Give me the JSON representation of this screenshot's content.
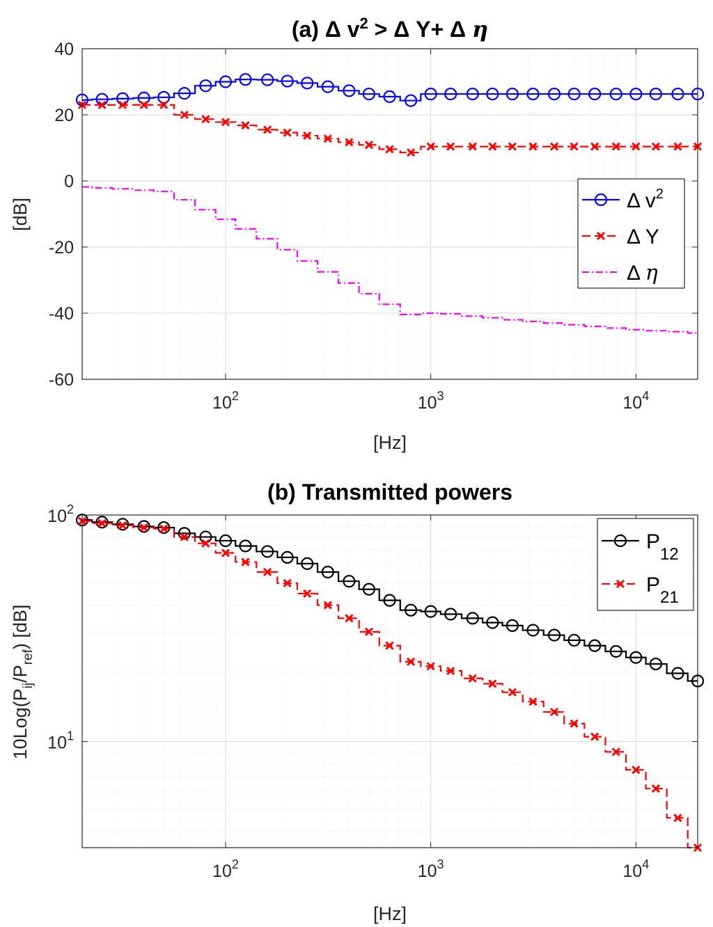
{
  "chart_data": [
    {
      "type": "line",
      "title": "(a) Δ v² > Δ Y+ Δ η",
      "title_parts": {
        "a": "(a) Δ v",
        "sup": "2",
        "b": " > Δ Y+ Δ ",
        "eta": "η"
      },
      "xlabel": "[Hz]",
      "ylabel": "[dB]",
      "xscale": "log",
      "xlim": [
        20,
        20000
      ],
      "ylim": [
        -60,
        40
      ],
      "yticks": [
        -60,
        -40,
        -20,
        0,
        20,
        40
      ],
      "ytick_labels": [
        "-60",
        "-40",
        "-20",
        "0",
        "20",
        "40"
      ],
      "xticks": [
        100,
        1000,
        10000
      ],
      "xtick_labels": [
        {
          "base": "10",
          "exp": "2"
        },
        {
          "base": "10",
          "exp": "3"
        },
        {
          "base": "10",
          "exp": "4"
        }
      ],
      "grid": true,
      "legend_position": "right",
      "x": [
        20,
        25,
        31.5,
        40,
        50,
        63,
        80,
        100,
        125,
        160,
        200,
        250,
        315,
        400,
        500,
        630,
        800,
        1000,
        1250,
        1600,
        2000,
        2500,
        3150,
        4000,
        5000,
        6300,
        8000,
        10000,
        12500,
        16000,
        20000
      ],
      "series": [
        {
          "name": "Δ v²",
          "legend_parts": {
            "a": "Δ v",
            "sup": "2"
          },
          "color": "#0000ff",
          "marker": "circle",
          "linestyle": "solid",
          "values": [
            24.5,
            24.7,
            24.9,
            25.1,
            25.3,
            26.5,
            28.8,
            30.0,
            30.7,
            30.6,
            30.2,
            29.6,
            28.5,
            27.3,
            26.3,
            25.5,
            24.3,
            26.3,
            26.3,
            26.3,
            26.3,
            26.3,
            26.3,
            26.3,
            26.3,
            26.3,
            26.3,
            26.3,
            26.3,
            26.3,
            26.3
          ]
        },
        {
          "name": "Δ Y",
          "legend_parts": {
            "a": "Δ Y",
            "sup": ""
          },
          "color": "#ff0000",
          "marker": "x",
          "linestyle": "dashed",
          "values": [
            23.0,
            23.0,
            23.0,
            23.0,
            23.0,
            20.0,
            18.7,
            17.8,
            16.8,
            15.5,
            14.6,
            13.7,
            12.8,
            11.7,
            10.9,
            9.6,
            8.6,
            10.4,
            10.4,
            10.4,
            10.4,
            10.4,
            10.4,
            10.4,
            10.4,
            10.4,
            10.4,
            10.4,
            10.4,
            10.4,
            10.4
          ]
        },
        {
          "name": "Δ η",
          "legend_parts": {
            "a": "Δ ",
            "eta": "η"
          },
          "color": "#ff00ff",
          "marker": "none",
          "linestyle": "dashdot",
          "values": [
            -1.8,
            -2.1,
            -2.4,
            -2.8,
            -3.2,
            -5.7,
            -8.7,
            -11.6,
            -14.5,
            -17.5,
            -20.8,
            -24.2,
            -27.5,
            -30.9,
            -34.1,
            -37.3,
            -40.4,
            -40.0,
            -40.2,
            -40.9,
            -41.4,
            -42.0,
            -42.5,
            -43.0,
            -43.5,
            -44.0,
            -44.5,
            -45.0,
            -45.3,
            -45.6,
            -46.0
          ]
        }
      ]
    },
    {
      "type": "line",
      "title": "(b) Transmitted powers",
      "xlabel": "[Hz]",
      "ylabel": "10Log(Pij/Pref) [dB]",
      "ylabel_parts": {
        "a": "10Log(P",
        "sub1": "ij",
        "b": "/P",
        "sub2": "ref",
        "c": ") [dB]"
      },
      "xscale": "log",
      "yscale": "log",
      "xlim": [
        20,
        20000
      ],
      "ylim": [
        3.4,
        100
      ],
      "yticks": [
        10,
        100
      ],
      "ytick_labels": [
        {
          "base": "10",
          "exp": "1"
        },
        {
          "base": "10",
          "exp": "2"
        }
      ],
      "xticks": [
        100,
        1000,
        10000
      ],
      "xtick_labels": [
        {
          "base": "10",
          "exp": "2"
        },
        {
          "base": "10",
          "exp": "3"
        },
        {
          "base": "10",
          "exp": "4"
        }
      ],
      "grid": true,
      "legend_position": "top-right",
      "x": [
        20,
        25,
        31.5,
        40,
        50,
        63,
        80,
        100,
        125,
        160,
        200,
        250,
        315,
        400,
        500,
        630,
        800,
        1000,
        1250,
        1600,
        2000,
        2500,
        3150,
        4000,
        5000,
        6300,
        8000,
        10000,
        12500,
        16000,
        20000
      ],
      "series": [
        {
          "name": "P12",
          "legend_parts": {
            "a": "P",
            "sub": "12"
          },
          "color": "#000000",
          "marker": "circle",
          "linestyle": "solid",
          "values": [
            95,
            93,
            91,
            89,
            88,
            83,
            80,
            77,
            73,
            69,
            65,
            61,
            56,
            51,
            47,
            42,
            38,
            37.5,
            36.5,
            35,
            33.5,
            32.5,
            31,
            29.5,
            28,
            26.5,
            25,
            23.5,
            22,
            20,
            18.5
          ]
        },
        {
          "name": "P21",
          "legend_parts": {
            "a": "P",
            "sub": "21"
          },
          "color": "#ff0000",
          "marker": "x",
          "linestyle": "dashed",
          "values": [
            94,
            92,
            90,
            88,
            87,
            80,
            75,
            68,
            62,
            56,
            50,
            45,
            40,
            35,
            30.5,
            26.5,
            22.5,
            21.5,
            20.5,
            19,
            18,
            16.5,
            15,
            13.5,
            12,
            10.5,
            9,
            7.5,
            6.2,
            4.6,
            3.4
          ]
        }
      ]
    }
  ]
}
